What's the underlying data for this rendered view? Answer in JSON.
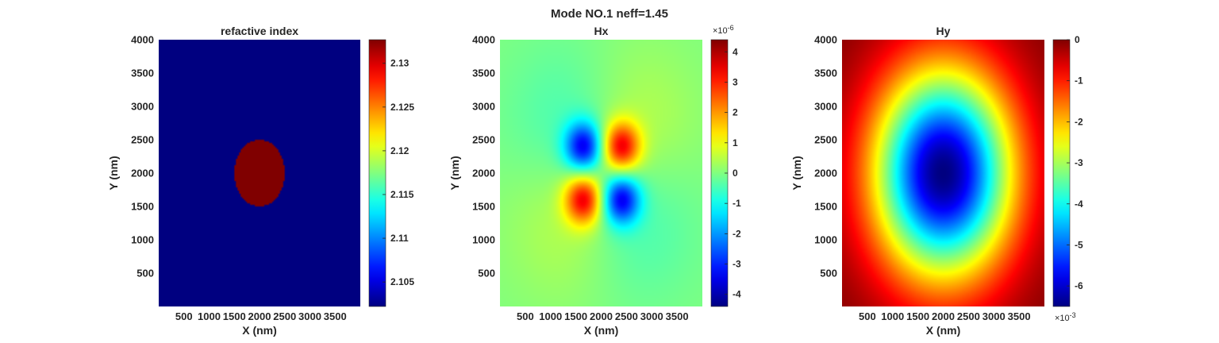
{
  "figure": {
    "suptitle": "Mode NO.1 neff=1.45"
  },
  "chart_data": [
    {
      "type": "heatmap",
      "title": "refactive index",
      "xlabel": "X (nm)",
      "ylabel": "Y (nm)",
      "xlim": [
        0,
        4000
      ],
      "ylim": [
        0,
        4000
      ],
      "xticks": [
        500,
        1000,
        1500,
        2000,
        2500,
        3000,
        3500
      ],
      "yticks": [
        500,
        1000,
        1500,
        2000,
        2500,
        3000,
        3500,
        4000
      ],
      "colormap": "jet",
      "clim": [
        2.1022,
        2.1327
      ],
      "colorbar_ticks": [
        2.105,
        2.11,
        2.115,
        2.12,
        2.125,
        2.13
      ],
      "colorbar_exponent": "",
      "field": {
        "kind": "ellipse",
        "center": [
          2000,
          2000
        ],
        "radius_x": 500,
        "radius_y": 500,
        "inside_value": 2.1327,
        "outside_value": 2.1022
      }
    },
    {
      "type": "heatmap",
      "title": "Hx",
      "xlabel": "X (nm)",
      "ylabel": "Y (nm)",
      "xlim": [
        0,
        4000
      ],
      "ylim": [
        0,
        4000
      ],
      "xticks": [
        500,
        1000,
        1500,
        2000,
        2500,
        3000,
        3500
      ],
      "yticks": [
        500,
        1000,
        1500,
        2000,
        2500,
        3000,
        3500,
        4000
      ],
      "colormap": "jet",
      "clim": [
        -4.4,
        4.4
      ],
      "colorbar_ticks": [
        -4,
        -3,
        -2,
        -1,
        0,
        1,
        2,
        3,
        4
      ],
      "colorbar_exponent": "×10",
      "colorbar_exponent_power": "-6",
      "colorbar_exponent_position": "top",
      "field": {
        "kind": "quadrupole",
        "center": [
          2000,
          2000
        ],
        "peak": 4.4,
        "lobes": [
          [
            1650,
            2400,
            -1
          ],
          [
            2400,
            2400,
            1
          ],
          [
            1650,
            1600,
            1
          ],
          [
            2400,
            1600,
            -1
          ]
        ]
      }
    },
    {
      "type": "heatmap",
      "title": "Hy",
      "xlabel": "X (nm)",
      "ylabel": "Y (nm)",
      "xlim": [
        0,
        4000
      ],
      "ylim": [
        0,
        4000
      ],
      "xticks": [
        500,
        1000,
        1500,
        2000,
        2500,
        3000,
        3500
      ],
      "yticks": [
        500,
        1000,
        1500,
        2000,
        2500,
        3000,
        3500,
        4000
      ],
      "colormap": "jet",
      "clim": [
        -6.5,
        0
      ],
      "colorbar_ticks": [
        -6,
        -5,
        -4,
        -3,
        -2,
        -1,
        0
      ],
      "colorbar_exponent": "×10",
      "colorbar_exponent_power": "-3",
      "colorbar_exponent_position": "bottom",
      "field": {
        "kind": "fundamental",
        "center": [
          2000,
          2000
        ],
        "min": -6.5,
        "max": 0
      }
    }
  ]
}
